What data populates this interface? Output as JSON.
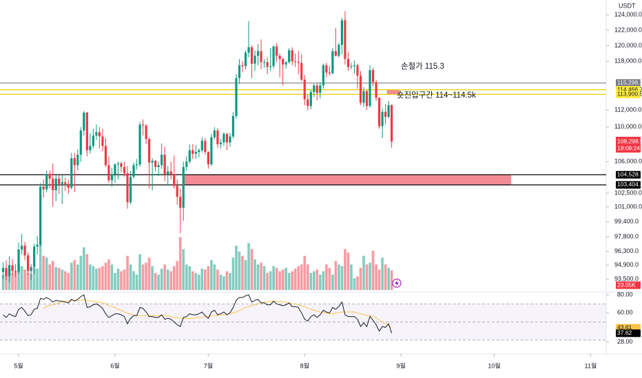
{
  "chart_data": {
    "type": "candlestick",
    "unit": "USDT",
    "log_scale": true,
    "ylim": [
      92000,
      126000
    ],
    "yticks": [
      {
        "value": 124000,
        "label": "124,000.0"
      },
      {
        "value": 122000,
        "label": "122,000.0"
      },
      {
        "value": 120000,
        "label": "120,000.0"
      },
      {
        "value": 118000,
        "label": "118,000.0"
      },
      {
        "value": 112000,
        "label": "112,000.0"
      },
      {
        "value": 110000,
        "label": "110,000.0"
      },
      {
        "value": 106000,
        "label": "106,000.0"
      },
      {
        "value": 102500,
        "label": "102,500.0"
      },
      {
        "value": 101000,
        "label": "101,000.0"
      },
      {
        "value": 99400,
        "label": "99,400.0"
      },
      {
        "value": 97800,
        "label": "97,800.0"
      },
      {
        "value": 96300,
        "label": "96,300.0"
      },
      {
        "value": 94900,
        "label": "94,900.0"
      },
      {
        "value": 93500,
        "label": "93,500.0"
      }
    ],
    "xlim": [
      -1,
      194
    ],
    "xticks": [
      {
        "value": 5,
        "label": "5월"
      },
      {
        "value": 36,
        "label": "6월"
      },
      {
        "value": 66,
        "label": "7월"
      },
      {
        "value": 97,
        "label": "8월"
      },
      {
        "value": 128,
        "label": "9월"
      },
      {
        "value": 158,
        "label": "10월"
      },
      {
        "value": 189,
        "label": "11월"
      }
    ],
    "up_color": "#089981",
    "down_color": "#f23645",
    "candles": [
      [
        94200,
        95200,
        93500,
        94600
      ],
      [
        94600,
        95400,
        93400,
        93800
      ],
      [
        93800,
        95800,
        93200,
        94900
      ],
      [
        94900,
        95500,
        93900,
        94300
      ],
      [
        94300,
        95000,
        93700,
        94200
      ],
      [
        94200,
        97200,
        94000,
        96500
      ],
      [
        96500,
        98100,
        96000,
        96900
      ],
      [
        96900,
        97300,
        95400,
        95900
      ],
      [
        95900,
        96200,
        93900,
        94300
      ],
      [
        94300,
        95000,
        93400,
        94700
      ],
      [
        94700,
        97100,
        94000,
        96800
      ],
      [
        96800,
        97900,
        96000,
        97000
      ],
      [
        97000,
        103600,
        96800,
        103200
      ],
      [
        103200,
        104000,
        102000,
        102900
      ],
      [
        102900,
        105000,
        102600,
        104600
      ],
      [
        104600,
        105000,
        103000,
        104100
      ],
      [
        104100,
        105800,
        101000,
        102800
      ],
      [
        102800,
        104600,
        101600,
        104100
      ],
      [
        104100,
        104500,
        102400,
        103500
      ],
      [
        103500,
        104500,
        101300,
        103700
      ],
      [
        103700,
        104200,
        102700,
        103500
      ],
      [
        103500,
        104000,
        102400,
        103100
      ],
      [
        103100,
        107000,
        102900,
        106400
      ],
      [
        106400,
        107000,
        102600,
        105600
      ],
      [
        105600,
        107400,
        105000,
        106800
      ],
      [
        106800,
        110000,
        106000,
        109600
      ],
      [
        109600,
        111900,
        109000,
        111700
      ],
      [
        111700,
        111800,
        106600,
        107300
      ],
      [
        107300,
        109300,
        106900,
        107800
      ],
      [
        107800,
        109800,
        107500,
        109000
      ],
      [
        109000,
        110300,
        108500,
        109400
      ],
      [
        109400,
        110000,
        107500,
        108900
      ],
      [
        108900,
        109800,
        107200,
        107800
      ],
      [
        107800,
        108700,
        105400,
        105600
      ],
      [
        105600,
        106600,
        103600,
        103900
      ],
      [
        103900,
        105300,
        103200,
        104600
      ],
      [
        104600,
        105800,
        103600,
        105700
      ],
      [
        105700,
        106000,
        104000,
        105800
      ],
      [
        105800,
        106000,
        104800,
        105400
      ],
      [
        105400,
        106000,
        104300,
        104700
      ],
      [
        104700,
        105500,
        100800,
        101500
      ],
      [
        101500,
        104900,
        101300,
        104300
      ],
      [
        104300,
        105900,
        104100,
        105600
      ],
      [
        105600,
        106300,
        105100,
        105700
      ],
      [
        105700,
        110600,
        105400,
        110300
      ],
      [
        110300,
        110900,
        109000,
        110200
      ],
      [
        110200,
        110300,
        108000,
        108600
      ],
      [
        108600,
        108800,
        103000,
        105900
      ],
      [
        105900,
        106400,
        102800,
        106100
      ],
      [
        106100,
        106200,
        104900,
        105400
      ],
      [
        105400,
        106000,
        104400,
        105600
      ],
      [
        105600,
        108100,
        105200,
        106800
      ],
      [
        106800,
        107700,
        103800,
        104600
      ],
      [
        104600,
        105500,
        103300,
        104900
      ],
      [
        104900,
        106000,
        104000,
        104600
      ],
      [
        104600,
        106700,
        103000,
        103300
      ],
      [
        103300,
        104000,
        101200,
        102100
      ],
      [
        102100,
        103000,
        98200,
        100900
      ],
      [
        100900,
        106000,
        99500,
        105400
      ],
      [
        105400,
        106600,
        105000,
        106000
      ],
      [
        106000,
        108000,
        105800,
        107300
      ],
      [
        107300,
        108000,
        106300,
        106900
      ],
      [
        106900,
        107900,
        106300,
        107100
      ],
      [
        107100,
        107500,
        106500,
        107300
      ],
      [
        107300,
        108800,
        107000,
        108400
      ],
      [
        108400,
        108700,
        106800,
        107100
      ],
      [
        107100,
        107200,
        105200,
        105700
      ],
      [
        105700,
        109200,
        105500,
        108800
      ],
      [
        108800,
        110000,
        108600,
        109600
      ],
      [
        109600,
        109900,
        107600,
        108000
      ],
      [
        108000,
        108600,
        107500,
        108200
      ],
      [
        108200,
        109400,
        107800,
        109200
      ],
      [
        109200,
        109300,
        107300,
        108200
      ],
      [
        108200,
        109300,
        107700,
        108900
      ],
      [
        108900,
        111800,
        108700,
        111300
      ],
      [
        111300,
        116400,
        111000,
        115900
      ],
      [
        115900,
        118300,
        115200,
        117500
      ],
      [
        117500,
        118000,
        116600,
        117400
      ],
      [
        117400,
        119400,
        117000,
        119100
      ],
      [
        119100,
        123200,
        118500,
        119800
      ],
      [
        119800,
        120000,
        115900,
        117700
      ],
      [
        117700,
        119400,
        116800,
        118700
      ],
      [
        118700,
        120200,
        117500,
        119300
      ],
      [
        119300,
        120800,
        117000,
        117900
      ],
      [
        117900,
        118300,
        117200,
        117900
      ],
      [
        117900,
        118500,
        116400,
        117300
      ],
      [
        117300,
        119700,
        116800,
        117400
      ],
      [
        117400,
        120000,
        117100,
        119900
      ],
      [
        119900,
        120300,
        117900,
        118700
      ],
      [
        118700,
        119000,
        116000,
        118300
      ],
      [
        118300,
        118500,
        115000,
        117600
      ],
      [
        117600,
        118000,
        117100,
        117900
      ],
      [
        117900,
        119700,
        117700,
        119400
      ],
      [
        119400,
        119800,
        117500,
        118000
      ],
      [
        118000,
        119000,
        117300,
        117900
      ],
      [
        117900,
        119300,
        116400,
        117800
      ],
      [
        117800,
        118900,
        115500,
        115700
      ],
      [
        115700,
        116300,
        112600,
        113300
      ],
      [
        113300,
        113900,
        112000,
        112500
      ],
      [
        112500,
        114500,
        112100,
        114200
      ],
      [
        114200,
        115200,
        113600,
        115000
      ],
      [
        115000,
        115300,
        113200,
        114100
      ],
      [
        114100,
        115400,
        113400,
        115000
      ],
      [
        115000,
        117700,
        114600,
        117500
      ],
      [
        117500,
        117800,
        116000,
        116600
      ],
      [
        116600,
        117400,
        116200,
        116500
      ],
      [
        116500,
        119700,
        116400,
        119300
      ],
      [
        119300,
        122300,
        118600,
        118700
      ],
      [
        118700,
        120400,
        118500,
        120100
      ],
      [
        120100,
        123600,
        118900,
        123300
      ],
      [
        123300,
        124500,
        117600,
        118300
      ],
      [
        118300,
        119200,
        116800,
        117300
      ],
      [
        117300,
        117800,
        117000,
        117400
      ],
      [
        117400,
        118100,
        116500,
        117500
      ],
      [
        117500,
        117700,
        114600,
        116200
      ],
      [
        116200,
        116800,
        112600,
        112900
      ],
      [
        112900,
        114800,
        112400,
        114300
      ],
      [
        114300,
        114500,
        112000,
        112500
      ],
      [
        112500,
        117500,
        112300,
        116900
      ],
      [
        116900,
        117200,
        114900,
        115400
      ],
      [
        115400,
        115700,
        113100,
        113500
      ],
      [
        113500,
        113500,
        109800,
        110100
      ],
      [
        110100,
        112200,
        108700,
        111800
      ],
      [
        111800,
        112700,
        110300,
        111200
      ],
      [
        111200,
        113100,
        111000,
        112600
      ],
      [
        112600,
        112700,
        107600,
        108298.9
      ]
    ],
    "last_price_label": "108,298.9",
    "countdown": "18:08:24",
    "volume": {
      "values": [
        18,
        22,
        25,
        20,
        21,
        30,
        28,
        24,
        20,
        19,
        26,
        25,
        55,
        40,
        38,
        30,
        34,
        27,
        26,
        24,
        22,
        20,
        32,
        35,
        30,
        40,
        50,
        42,
        30,
        28,
        25,
        26,
        28,
        32,
        36,
        30,
        20,
        25,
        22,
        24,
        40,
        30,
        22,
        18,
        42,
        30,
        32,
        38,
        28,
        20,
        18,
        25,
        30,
        24,
        22,
        28,
        34,
        62,
        48,
        30,
        28,
        22,
        20,
        18,
        25,
        24,
        28,
        35,
        30,
        24,
        18,
        16,
        22,
        20,
        38,
        52,
        45,
        40,
        35,
        55,
        48,
        36,
        30,
        32,
        28,
        20,
        22,
        28,
        26,
        22,
        24,
        26,
        20,
        22,
        25,
        28,
        30,
        40,
        30,
        20,
        22,
        24,
        18,
        22,
        30,
        26,
        18,
        34,
        30,
        28,
        48,
        44,
        30,
        14,
        16,
        26,
        40,
        30,
        32,
        46,
        30,
        24,
        38,
        30,
        26,
        23.05
      ],
      "last_label": "23.05K"
    },
    "levels": [
      {
        "value": 115298.3,
        "label": "115,298.3",
        "color": "#787b86",
        "text_color": "#ffffff"
      },
      {
        "value": 114466.7,
        "label": "114,466.7",
        "color": "#ffeb3b",
        "text_color": "#131722"
      },
      {
        "value": 113900.5,
        "label": "113,900.5",
        "color": "#ffeb3b",
        "text_color": "#131722"
      },
      {
        "value": 104528.7,
        "label": "104,528.7",
        "color": "#000000",
        "text_color": "#ffffff"
      },
      {
        "value": 103404.3,
        "label": "103,404.3",
        "color": "#000000",
        "text_color": "#ffffff"
      }
    ],
    "zone_color": "#f28b95",
    "annotations": [
      "손절가 115.3",
      "숏진입구간 114~114.5k"
    ],
    "rsi": {
      "ylim": [
        17,
        83
      ],
      "yticks": [
        {
          "value": 80,
          "label": "80.00"
        },
        {
          "value": 60,
          "label": "60.00"
        },
        {
          "value": 28,
          "label": "28.00"
        }
      ],
      "bands": [
        70,
        50,
        30
      ],
      "color": "#131722",
      "ma_color": "#f7c548",
      "values": [
        58,
        55,
        59,
        57,
        56,
        64,
        66,
        62,
        57,
        58,
        64,
        65,
        76,
        75,
        77,
        75,
        72,
        74,
        73,
        73,
        72,
        71,
        75,
        73,
        75,
        78,
        80,
        66,
        67,
        69,
        70,
        68,
        65,
        59,
        55,
        57,
        59,
        59,
        58,
        56,
        48,
        54,
        57,
        57,
        66,
        65,
        61,
        56,
        56,
        55,
        55,
        58,
        53,
        54,
        53,
        50,
        47,
        45,
        55,
        56,
        59,
        58,
        58,
        59,
        61,
        57,
        54,
        61,
        63,
        58,
        59,
        61,
        58,
        60,
        66,
        74,
        77,
        77,
        79,
        80,
        72,
        74,
        75,
        71,
        71,
        69,
        69,
        73,
        70,
        69,
        68,
        69,
        71,
        67,
        67,
        66,
        60,
        53,
        51,
        56,
        58,
        55,
        58,
        63,
        61,
        60,
        66,
        64,
        67,
        72,
        58,
        56,
        56,
        56,
        53,
        45,
        49,
        45,
        56,
        52,
        47,
        40,
        45,
        44,
        48,
        37.62
      ],
      "ma": [
        null,
        null,
        null,
        null,
        null,
        null,
        null,
        null,
        null,
        null,
        null,
        null,
        null,
        65,
        67,
        68,
        69,
        70,
        71,
        72,
        73,
        73,
        74,
        74,
        74,
        74,
        75,
        74,
        73,
        73,
        72,
        72,
        71,
        70,
        68,
        67,
        66,
        64,
        63,
        61,
        60,
        59,
        58,
        57,
        57,
        57,
        57,
        57,
        57,
        57,
        57,
        57,
        57,
        57,
        56,
        55,
        55,
        54,
        54,
        54,
        54,
        54,
        55,
        55,
        55,
        56,
        56,
        57,
        57,
        57,
        58,
        58,
        58,
        59,
        60,
        61,
        63,
        64,
        66,
        67,
        68,
        69,
        70,
        71,
        72,
        72,
        73,
        73,
        73,
        73,
        72,
        72,
        71,
        70,
        70,
        69,
        68,
        67,
        65,
        64,
        63,
        62,
        61,
        60,
        60,
        59,
        59,
        60,
        60,
        61,
        61,
        61,
        61,
        61,
        60,
        59,
        58,
        57,
        57,
        56,
        55,
        52,
        50,
        48,
        46,
        43.61
      ]
    }
  }
}
